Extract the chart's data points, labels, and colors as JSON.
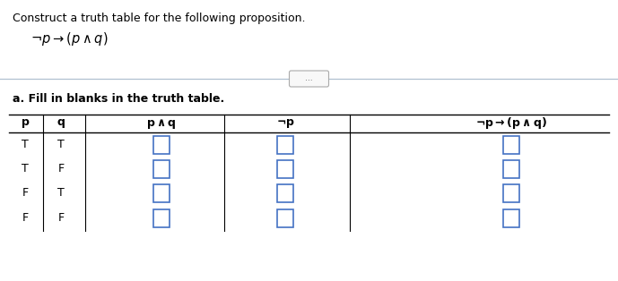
{
  "title_text": "Construct a truth table for the following proposition.",
  "section_label": "a. Fill in blanks in the truth table.",
  "bg_color": "#ffffff",
  "text_color": "#000000",
  "box_color": "#4472c4",
  "title_fontsize": 9.0,
  "formula_fontsize": 10.5,
  "header_fontsize": 9.0,
  "cell_fontsize": 9.0,
  "section_fontsize": 9.0,
  "pq_vals": [
    [
      "T",
      "T"
    ],
    [
      "T",
      "F"
    ],
    [
      "F",
      "T"
    ],
    [
      "F",
      "F"
    ]
  ]
}
